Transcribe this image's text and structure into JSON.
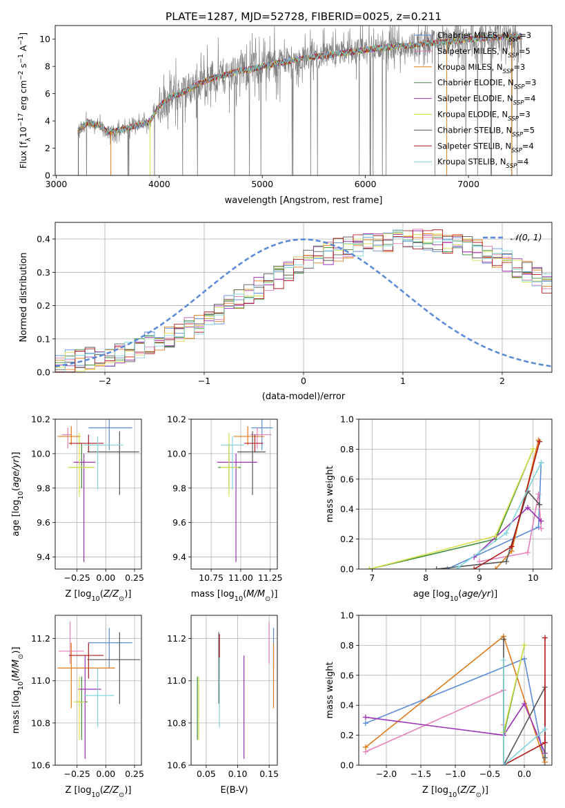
{
  "figure_title": "PLATE=1287, MJD=52728, FIBERID=0025, z=0.211",
  "colors": {
    "Chabrier MILES": "#5b8bd8",
    "Salpeter MILES": "#e77fb8",
    "Kroupa MILES": "#e07b17",
    "Chabrier ELODIE": "#3a8a3a",
    "Salpeter ELODIE": "#9d31b7",
    "Kroupa ELODIE": "#d8e04a",
    "Chabrier STELIB": "#555555",
    "Salpeter STELIB": "#b01818",
    "Kroupa STELIB": "#80d4dc",
    "data": "#808080",
    "normal": "#5b8bd8"
  },
  "chart_data": [
    {
      "id": "spectrum",
      "type": "line",
      "title": "PLATE=1287, MJD=52728, FIBERID=0025, z=0.211",
      "xlabel": "wavelength [Angstrom, rest frame]",
      "ylabel": "Flux [f_λ 10^-17 erg cm^-2 s^-1 A^-1]",
      "xlim": [
        2990,
        7810
      ],
      "ylim": [
        0,
        11
      ],
      "xticks": [
        3000,
        4000,
        5000,
        6000,
        7000
      ],
      "yticks": [
        0,
        2,
        4,
        6,
        8,
        10
      ],
      "grid": false,
      "legend_position": "right",
      "legend": [
        {
          "label": "Chabrier MILES, N",
          "sub": "SSP",
          "tail": "=3"
        },
        {
          "label": "Salpeter MILES, N",
          "sub": "SSP",
          "tail": "=5"
        },
        {
          "label": "Kroupa MILES, N",
          "sub": "SSP",
          "tail": "=3"
        },
        {
          "label": "Chabrier ELODIE, N",
          "sub": "SSP",
          "tail": "=3"
        },
        {
          "label": "Salpeter ELODIE, N",
          "sub": "SSP",
          "tail": "=4"
        },
        {
          "label": "Kroupa ELODIE, N",
          "sub": "SSP",
          "tail": "=3"
        },
        {
          "label": "Chabrier STELIB, N",
          "sub": "SSP",
          "tail": "=5"
        },
        {
          "label": "Salpeter STELIB, N",
          "sub": "SSP",
          "tail": "=4"
        },
        {
          "label": "Kroupa STELIB, N",
          "sub": "SSP",
          "tail": "=4"
        }
      ],
      "continuum": {
        "x": [
          3210,
          3300,
          3400,
          3500,
          3600,
          3700,
          3800,
          3900,
          4000,
          4100,
          4200,
          4300,
          4400,
          4500,
          4600,
          4700,
          4800,
          4900,
          5000,
          5200,
          5400,
          5600,
          5800,
          6000,
          6200,
          6400,
          6600,
          6800,
          7000,
          7200,
          7400,
          7520
        ],
        "y": [
          3.1,
          3.9,
          3.7,
          3.2,
          3.3,
          3.5,
          3.7,
          3.9,
          5.1,
          5.7,
          6.0,
          6.4,
          6.8,
          7.1,
          7.3,
          7.5,
          7.7,
          7.8,
          8.0,
          8.3,
          8.6,
          8.8,
          9.0,
          9.2,
          9.4,
          9.5,
          9.7,
          9.8,
          10.0,
          10.1,
          10.2,
          10.2
        ]
      },
      "model_wavelength_range": [
        3210,
        7520
      ]
    },
    {
      "id": "residuals",
      "type": "histogram",
      "xlabel": "(data-model)/error",
      "ylabel": "Normed distribution",
      "xlim": [
        -2.5,
        2.5
      ],
      "ylim": [
        0,
        0.45
      ],
      "xticks": [
        -2,
        -1,
        0,
        1,
        2
      ],
      "yticks": [
        0.0,
        0.1,
        0.2,
        0.3,
        0.4
      ],
      "grid": true,
      "legend": "𝒩(0, 1)",
      "legend_position": "top-right",
      "bin_width": 0.1,
      "bin_start": -2.5,
      "mean_profile": [
        0.028,
        0.033,
        0.038,
        0.042,
        0.047,
        0.052,
        0.058,
        0.066,
        0.075,
        0.086,
        0.097,
        0.108,
        0.121,
        0.134,
        0.149,
        0.164,
        0.18,
        0.198,
        0.215,
        0.232,
        0.251,
        0.268,
        0.285,
        0.302,
        0.317,
        0.332,
        0.345,
        0.357,
        0.368,
        0.377,
        0.384,
        0.389,
        0.393,
        0.396,
        0.397,
        0.398,
        0.397,
        0.396,
        0.393,
        0.389,
        0.384,
        0.377,
        0.368,
        0.357,
        0.345,
        0.332,
        0.317,
        0.302,
        0.285,
        0.268
      ],
      "normal": {
        "mean": 0,
        "sigma": 1
      }
    },
    {
      "id": "age-vs-Z",
      "type": "errorbar",
      "xlabel": "Z [log10(Z/Z⊙)]",
      "ylabel": "age  [log10(age/yr)]",
      "xlim": [
        -0.44,
        0.31
      ],
      "ylim": [
        9.33,
        10.2
      ],
      "xticks": [
        -0.25,
        0.0,
        0.25
      ],
      "yticks": [
        9.4,
        9.6,
        9.8,
        10.0,
        10.2
      ],
      "grid": true,
      "points": [
        {
          "model": "Chabrier MILES",
          "x": 0.03,
          "y": 10.15,
          "xerr": [
            0.18,
            0.2
          ],
          "yerr": [
            0.13,
            0.05
          ]
        },
        {
          "model": "Salpeter MILES",
          "x": -0.33,
          "y": 10.11,
          "xerr": [
            0.05,
            0.03
          ],
          "yerr": [
            0.08,
            0.04
          ]
        },
        {
          "model": "Kroupa MILES",
          "x": -0.3,
          "y": 10.1,
          "xerr": [
            0.12,
            0.08
          ],
          "yerr": [
            0.05,
            0.06
          ]
        },
        {
          "model": "Chabrier ELODIE",
          "x": -0.21,
          "y": 9.92,
          "xerr": [
            0.1,
            0.11
          ],
          "yerr": [
            0.12,
            0.14
          ]
        },
        {
          "model": "Salpeter ELODIE",
          "x": -0.19,
          "y": 9.95,
          "xerr": [
            0.09,
            0.1
          ],
          "yerr": [
            0.58,
            0.05
          ]
        },
        {
          "model": "Kroupa ELODIE",
          "x": -0.23,
          "y": 9.92,
          "xerr": [
            0.1,
            0.13
          ],
          "yerr": [
            0.17,
            0.2
          ]
        },
        {
          "model": "Chabrier STELIB",
          "x": 0.12,
          "y": 10.01,
          "xerr": [
            0.28,
            0.17
          ],
          "yerr": [
            0.25,
            0.12
          ]
        },
        {
          "model": "Salpeter STELIB",
          "x": -0.15,
          "y": 10.06,
          "xerr": [
            0.17,
            0.13
          ],
          "yerr": [
            0.05,
            0.05
          ]
        },
        {
          "model": "Kroupa STELIB",
          "x": -0.07,
          "y": 10.05,
          "xerr": [
            0.12,
            0.22
          ],
          "yerr": [
            0.26,
            0.05
          ]
        }
      ]
    },
    {
      "id": "age-vs-mass",
      "type": "errorbar",
      "xlabel": "mass [log10(M/M⊙)]",
      "ylabel": "",
      "xlim": [
        10.58,
        11.31
      ],
      "ylim": [
        9.33,
        10.2
      ],
      "xticks": [
        10.75,
        11.0,
        11.25
      ],
      "yticks": [
        9.4,
        9.6,
        9.8,
        10.0,
        10.2
      ],
      "grid": true,
      "points": [
        {
          "model": "Chabrier MILES",
          "x": 11.18,
          "y": 10.15,
          "xerr": [
            0.09,
            0.09
          ],
          "yerr": [
            0.13,
            0.05
          ]
        },
        {
          "model": "Salpeter MILES",
          "x": 11.14,
          "y": 10.11,
          "xerr": [
            0.06,
            0.12
          ],
          "yerr": [
            0.08,
            0.04
          ]
        },
        {
          "model": "Kroupa MILES",
          "x": 11.06,
          "y": 10.1,
          "xerr": [
            0.12,
            0.14
          ],
          "yerr": [
            0.05,
            0.06
          ]
        },
        {
          "model": "Chabrier ELODIE",
          "x": 10.9,
          "y": 9.92,
          "xerr": [
            0.09,
            0.1
          ],
          "yerr": [
            0.12,
            0.14
          ]
        },
        {
          "model": "Salpeter ELODIE",
          "x": 10.96,
          "y": 9.95,
          "xerr": [
            0.16,
            0.18
          ],
          "yerr": [
            0.58,
            0.05
          ]
        },
        {
          "model": "Kroupa ELODIE",
          "x": 10.9,
          "y": 9.92,
          "xerr": [
            0.07,
            0.08
          ],
          "yerr": [
            0.17,
            0.2
          ]
        },
        {
          "model": "Chabrier STELIB",
          "x": 11.1,
          "y": 10.01,
          "xerr": [
            0.13,
            0.11
          ],
          "yerr": [
            0.25,
            0.12
          ]
        },
        {
          "model": "Salpeter STELIB",
          "x": 11.12,
          "y": 10.06,
          "xerr": [
            0.09,
            0.07
          ],
          "yerr": [
            0.05,
            0.05
          ]
        },
        {
          "model": "Kroupa STELIB",
          "x": 10.93,
          "y": 10.05,
          "xerr": [
            0.1,
            0.1
          ],
          "yerr": [
            0.26,
            0.05
          ]
        }
      ]
    },
    {
      "id": "massweight-vs-age",
      "type": "line",
      "xlabel": "age  [log10(age/yr)]",
      "ylabel": "mass weight",
      "xlim": [
        6.75,
        10.35
      ],
      "ylim": [
        0,
        1
      ],
      "xticks": [
        7,
        8,
        9,
        10
      ],
      "yticks": [
        0.0,
        0.2,
        0.4,
        0.6,
        0.8,
        1.0
      ],
      "grid": true,
      "series": [
        {
          "model": "Chabrier MILES",
          "x": [
            8.4,
            10.1,
            10.15
          ],
          "y": [
            0.0,
            0.28,
            0.71
          ]
        },
        {
          "model": "Salpeter MILES",
          "x": [
            9.0,
            9.9,
            10.1,
            10.15
          ],
          "y": [
            0.05,
            0.11,
            0.5,
            0.27
          ]
        },
        {
          "model": "Kroupa MILES",
          "x": [
            9.3,
            9.6,
            10.1
          ],
          "y": [
            0.0,
            0.12,
            0.86
          ]
        },
        {
          "model": "Chabrier ELODIE",
          "x": [
            6.95,
            9.3,
            10.0
          ],
          "y": [
            0.0,
            0.2,
            0.8
          ]
        },
        {
          "model": "Salpeter ELODIE",
          "x": [
            8.9,
            9.9,
            10.15
          ],
          "y": [
            0.08,
            0.41,
            0.32
          ]
        },
        {
          "model": "Kroupa ELODIE",
          "x": [
            6.95,
            9.3,
            10.0
          ],
          "y": [
            0.0,
            0.22,
            0.8
          ]
        },
        {
          "model": "Chabrier STELIB",
          "x": [
            8.2,
            9.5,
            9.9,
            10.12
          ],
          "y": [
            0.0,
            0.05,
            0.52,
            0.43
          ]
        },
        {
          "model": "Salpeter STELIB",
          "x": [
            8.9,
            9.6,
            10.12
          ],
          "y": [
            0.0,
            0.15,
            0.85
          ]
        },
        {
          "model": "Kroupa STELIB",
          "x": [
            8.6,
            9.5,
            10.15
          ],
          "y": [
            0.01,
            0.24,
            0.71
          ]
        }
      ]
    },
    {
      "id": "mass-vs-Z",
      "type": "errorbar",
      "xlabel": "Z [log10(Z/Z⊙)]",
      "ylabel": "mass [log10(M/M⊙)]",
      "xlim": [
        -0.44,
        0.31
      ],
      "ylim": [
        10.6,
        11.31
      ],
      "xticks": [
        -0.25,
        0.0,
        0.25
      ],
      "yticks": [
        10.6,
        10.8,
        11.0,
        11.2
      ],
      "grid": true,
      "points": [
        {
          "model": "Chabrier MILES",
          "x": 0.03,
          "y": 11.18,
          "xerr": [
            0.18,
            0.2
          ],
          "yerr": [
            0.12,
            0.07
          ]
        },
        {
          "model": "Salpeter MILES",
          "x": -0.31,
          "y": 11.14,
          "xerr": [
            0.1,
            0.12
          ],
          "yerr": [
            0.06,
            0.14
          ]
        },
        {
          "model": "Kroupa MILES",
          "x": -0.3,
          "y": 11.06,
          "xerr": [
            0.12,
            0.38
          ],
          "yerr": [
            0.19,
            0.12
          ]
        },
        {
          "model": "Chabrier ELODIE",
          "x": -0.21,
          "y": 10.9,
          "xerr": [
            0.05,
            0.05
          ],
          "yerr": [
            0.18,
            0.12
          ]
        },
        {
          "model": "Salpeter ELODIE",
          "x": -0.18,
          "y": 10.96,
          "xerr": [
            0.06,
            0.14
          ],
          "yerr": [
            0.33,
            0.16
          ]
        },
        {
          "model": "Kroupa ELODIE",
          "x": -0.23,
          "y": 10.9,
          "xerr": [
            0.05,
            0.05
          ],
          "yerr": [
            0.18,
            0.12
          ]
        },
        {
          "model": "Chabrier STELIB",
          "x": 0.12,
          "y": 11.1,
          "xerr": [
            0.28,
            0.18
          ],
          "yerr": [
            0.21,
            0.13
          ]
        },
        {
          "model": "Salpeter STELIB",
          "x": -0.15,
          "y": 11.12,
          "xerr": [
            0.17,
            0.13
          ],
          "yerr": [
            0.11,
            0.06
          ]
        },
        {
          "model": "Kroupa STELIB",
          "x": -0.07,
          "y": 10.93,
          "xerr": [
            0.12,
            0.14
          ],
          "yerr": [
            0.15,
            0.13
          ]
        }
      ]
    },
    {
      "id": "mass-vs-EBV",
      "type": "errorbar",
      "xlabel": "E(B-V)",
      "ylabel": "",
      "xlim": [
        0.026,
        0.163
      ],
      "ylim": [
        10.6,
        11.31
      ],
      "xticks": [
        0.05,
        0.1,
        0.15
      ],
      "yticks": [
        10.6,
        10.8,
        11.0,
        11.2
      ],
      "grid": true,
      "points": [
        {
          "model": "Chabrier MILES",
          "x": 0.157,
          "y": 11.18,
          "xerr": [
            0,
            0
          ],
          "yerr": [
            0.12,
            0.07
          ]
        },
        {
          "model": "Salpeter MILES",
          "x": 0.15,
          "y": 11.14,
          "xerr": [
            0,
            0
          ],
          "yerr": [
            0.06,
            0.14
          ]
        },
        {
          "model": "Kroupa MILES",
          "x": 0.157,
          "y": 11.06,
          "xerr": [
            0,
            0
          ],
          "yerr": [
            0.19,
            0.12
          ]
        },
        {
          "model": "Chabrier ELODIE",
          "x": 0.036,
          "y": 10.9,
          "xerr": [
            0,
            0
          ],
          "yerr": [
            0.18,
            0.12
          ]
        },
        {
          "model": "Salpeter ELODIE",
          "x": 0.11,
          "y": 10.96,
          "xerr": [
            0,
            0
          ],
          "yerr": [
            0.33,
            0.16
          ]
        },
        {
          "model": "Kroupa ELODIE",
          "x": 0.038,
          "y": 10.9,
          "xerr": [
            0,
            0
          ],
          "yerr": [
            0.18,
            0.12
          ]
        },
        {
          "model": "Chabrier STELIB",
          "x": 0.07,
          "y": 11.1,
          "xerr": [
            0,
            0
          ],
          "yerr": [
            0.21,
            0.13
          ]
        },
        {
          "model": "Salpeter STELIB",
          "x": 0.071,
          "y": 11.12,
          "xerr": [
            0,
            0
          ],
          "yerr": [
            0.11,
            0.1
          ]
        },
        {
          "model": "Kroupa STELIB",
          "x": 0.071,
          "y": 10.93,
          "xerr": [
            0,
            0
          ],
          "yerr": [
            0.15,
            0.18
          ]
        }
      ]
    },
    {
      "id": "massweight-vs-Z",
      "type": "line",
      "xlabel": "Z [log10(Z/Z⊙)]",
      "ylabel": "mass weight",
      "xlim": [
        -2.4,
        0.4
      ],
      "ylim": [
        0,
        1
      ],
      "xticks": [
        -2.0,
        -1.5,
        -1.0,
        -0.5,
        0.0
      ],
      "yticks": [
        0.0,
        0.2,
        0.4,
        0.6,
        0.8,
        1.0
      ],
      "grid": true,
      "series": [
        {
          "model": "Chabrier MILES",
          "x": [
            -2.3,
            0.0,
            0.3
          ],
          "y": [
            0.28,
            0.71,
            0.0
          ]
        },
        {
          "model": "Salpeter MILES",
          "x": [
            -2.3,
            -0.3,
            -0.3
          ],
          "y": [
            0.09,
            0.5,
            0.27
          ]
        },
        {
          "model": "Kroupa MILES",
          "x": [
            -2.3,
            -0.3,
            0.3
          ],
          "y": [
            0.12,
            0.86,
            0.02
          ]
        },
        {
          "model": "Chabrier ELODIE",
          "x": [
            -0.3,
            0.0
          ],
          "y": [
            0.2,
            0.8
          ]
        },
        {
          "model": "Salpeter ELODIE",
          "x": [
            -2.3,
            -0.3,
            0.0,
            0.3
          ],
          "y": [
            0.32,
            0.2,
            0.41,
            0.08
          ]
        },
        {
          "model": "Kroupa ELODIE",
          "x": [
            -0.3,
            0.0
          ],
          "y": [
            0.22,
            0.8
          ]
        },
        {
          "model": "Chabrier STELIB",
          "x": [
            -0.3,
            -0.3,
            0.3,
            0.3
          ],
          "y": [
            0.84,
            0.0,
            0.52,
            0.05
          ]
        },
        {
          "model": "Salpeter STELIB",
          "x": [
            -0.3,
            0.3,
            0.3
          ],
          "y": [
            0.0,
            0.15,
            0.85
          ]
        },
        {
          "model": "Kroupa STELIB",
          "x": [
            -0.3,
            -0.3,
            0.3
          ],
          "y": [
            0.7,
            0.0,
            0.24
          ]
        }
      ]
    }
  ]
}
